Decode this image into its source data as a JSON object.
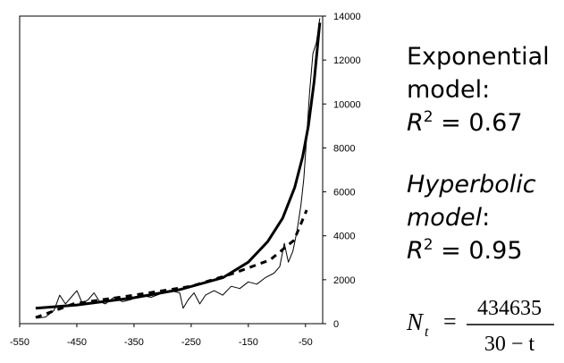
{
  "chart_data": {
    "type": "line",
    "xlim": [
      -550,
      -20
    ],
    "xticks": [
      -550,
      -450,
      -350,
      -250,
      -150,
      -50
    ],
    "ylim": [
      0,
      14000
    ],
    "yticks": [
      0,
      2000,
      4000,
      6000,
      8000,
      10000,
      12000,
      14000
    ],
    "series": [
      {
        "color": "#000000",
        "style": "thin",
        "x": [
          -520,
          -505,
          -490,
          -480,
          -470,
          -460,
          -450,
          -440,
          -430,
          -420,
          -410,
          -400,
          -385,
          -370,
          -355,
          -340,
          -320,
          -300,
          -285,
          -270,
          -264,
          -255,
          -245,
          -235,
          -225,
          -210,
          -195,
          -180,
          -165,
          -150,
          -135,
          -120,
          -105,
          -95,
          -87,
          -80,
          -72,
          -65,
          -58,
          -53,
          -48,
          -43,
          -37,
          -31,
          -25
        ],
        "values": [
          250,
          300,
          600,
          1300,
          900,
          1200,
          1500,
          900,
          1100,
          1400,
          1000,
          900,
          1200,
          1000,
          1100,
          1300,
          1200,
          1400,
          1500,
          1400,
          700,
          1100,
          1400,
          900,
          1300,
          1500,
          1300,
          1700,
          1600,
          1900,
          1800,
          2100,
          2300,
          2600,
          3660,
          2800,
          3300,
          4200,
          5400,
          6600,
          8500,
          10500,
          12300,
          12800,
          13900
        ]
      },
      {
        "color": "#000000",
        "style": "thick",
        "x": [
          -522,
          -450,
          -350,
          -270,
          -194,
          -150,
          -116,
          -90,
          -69,
          -55,
          -45,
          -35,
          -25
        ],
        "values": [
          700,
          850,
          1180,
          1550,
          2100,
          2800,
          3740,
          4800,
          6200,
          7600,
          9000,
          11000,
          13700
        ]
      },
      {
        "color": "#000000",
        "style": "dashed",
        "x": [
          -522,
          -456,
          -350,
          -250,
          -175,
          -112,
          -70,
          -48
        ],
        "values": [
          280,
          900,
          1300,
          1700,
          2300,
          2900,
          3800,
          5170
        ]
      }
    ]
  },
  "annotations": {
    "exponential": {
      "line1": "Exponential",
      "line2": "model:",
      "symbol": "R",
      "sup": "2",
      "rest": " = 0.67"
    },
    "hyperbolic": {
      "line1": "Hyperbolic",
      "line2": "model",
      "colon": ":",
      "symbol": "R",
      "sup": "2",
      "rest": " = 0.95"
    },
    "formula": {
      "lhs": "N",
      "sub": "t",
      "eq": "=",
      "numerator": "434635",
      "denominator": "30 − t"
    }
  }
}
